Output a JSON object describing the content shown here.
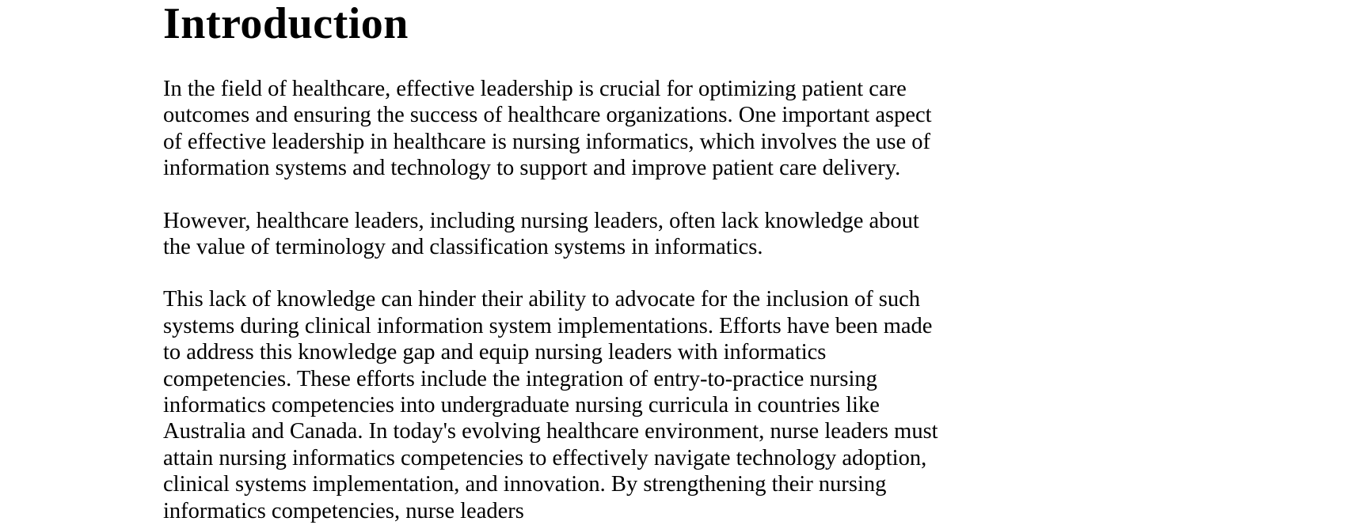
{
  "document": {
    "heading": "Introduction",
    "paragraphs": [
      {
        "lines": [
          "In the field of healthcare, effective leadership is crucial for optimizing patient care",
          "outcomes and ensuring the success of healthcare organizations. One important aspect",
          "of effective leadership in healthcare is nursing informatics, which involves the use of",
          "information systems and technology to support and improve patient care delivery."
        ]
      },
      {
        "lines": [
          "However, healthcare leaders, including nursing leaders, often lack knowledge about",
          "the value of terminology and classification systems in informatics."
        ]
      },
      {
        "lines": [
          "This lack of knowledge can hinder their ability to advocate for the inclusion of such",
          "systems during clinical information system implementations. Efforts have been made",
          "to address this knowledge gap and equip nursing leaders with informatics",
          "competencies. These efforts include the integration of entry-to-practice nursing",
          "informatics competencies into undergraduate nursing curricula in countries like",
          "Australia and Canada. In today's evolving healthcare environment, nurse leaders must",
          "attain nursing informatics competencies to effectively navigate technology adoption,",
          "clinical systems implementation, and innovation. By strengthening their nursing",
          "informatics competencies, nurse leaders"
        ]
      }
    ]
  }
}
